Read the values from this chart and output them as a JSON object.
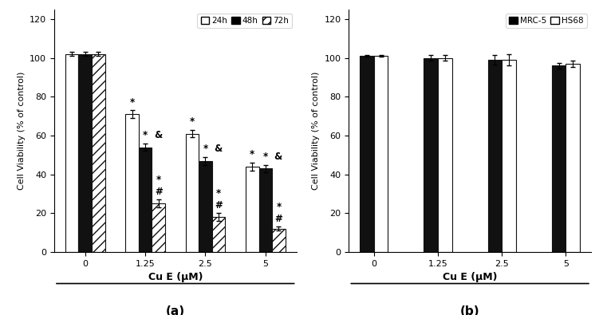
{
  "a_categories": [
    "0",
    "1.25",
    "2.5",
    "5"
  ],
  "a_24h": [
    102,
    71,
    61,
    44
  ],
  "a_48h": [
    102,
    54,
    47,
    43
  ],
  "a_72h": [
    102,
    25,
    18,
    12
  ],
  "a_24h_err": [
    1,
    2,
    2,
    2
  ],
  "a_48h_err": [
    1,
    2,
    2,
    2
  ],
  "a_72h_err": [
    1,
    2,
    2,
    1
  ],
  "a_xlabel": "Cu E (μM)",
  "a_ylabel": "Cell Viability (% of control)",
  "a_ylim": [
    0,
    125
  ],
  "a_yticks": [
    0,
    20,
    40,
    60,
    80,
    100,
    120
  ],
  "a_label": "(a)",
  "b_categories": [
    "0",
    "1.25",
    "2.5",
    "5"
  ],
  "b_mrc5": [
    101,
    100,
    99,
    96
  ],
  "b_hs68": [
    101,
    100,
    99,
    97
  ],
  "b_mrc5_err": [
    0.5,
    1.5,
    2.5,
    1.5
  ],
  "b_hs68_err": [
    0.5,
    1.5,
    3.0,
    1.5
  ],
  "b_xlabel": "Cu E (μM)",
  "b_ylabel": "Cell Viability (% of control)",
  "b_ylim": [
    0,
    125
  ],
  "b_yticks": [
    0,
    20,
    40,
    60,
    80,
    100,
    120
  ],
  "b_label": "(b)",
  "bar_width": 0.22,
  "color_white": "#ffffff",
  "color_black": "#111111",
  "hatch_pattern": "///",
  "edge_color": "#111111"
}
